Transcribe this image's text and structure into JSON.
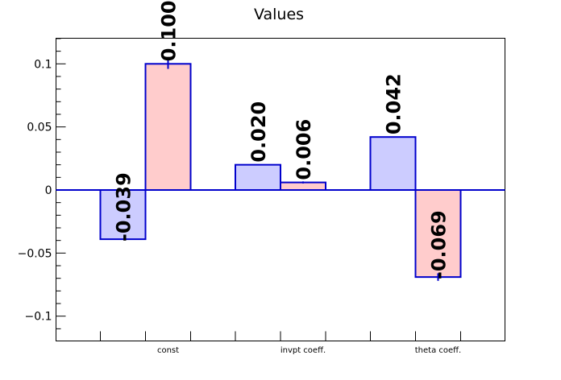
{
  "chart_data": {
    "type": "bar",
    "title": "Values",
    "xlabel": "",
    "ylabel": "",
    "ylim": [
      -0.12,
      0.12
    ],
    "grid": false,
    "categories": [
      "const",
      "invpt coeff.",
      "theta coeff."
    ],
    "yticks": [
      {
        "value": 0.1,
        "label": "0.1"
      },
      {
        "value": 0.05,
        "label": "0.05"
      },
      {
        "value": 0,
        "label": "0"
      },
      {
        "value": -0.05,
        "label": "−0.05"
      },
      {
        "value": -0.1,
        "label": "−0.1"
      }
    ],
    "series": [
      {
        "color": "#ccccff",
        "edge": "#0000cc",
        "values": [
          -0.039,
          0.02,
          0.042
        ],
        "labels": [
          "-0.039",
          "0.020",
          "0.042"
        ],
        "errors": [
          0.0,
          0.0,
          0.0
        ]
      },
      {
        "color": "#ffcccc",
        "edge": "#0000cc",
        "values": [
          0.1,
          0.006,
          -0.069
        ],
        "labels": [
          "0.100",
          "0.006",
          "-0.069"
        ],
        "errors": [
          0.004,
          0.0008,
          0.003
        ]
      }
    ]
  }
}
